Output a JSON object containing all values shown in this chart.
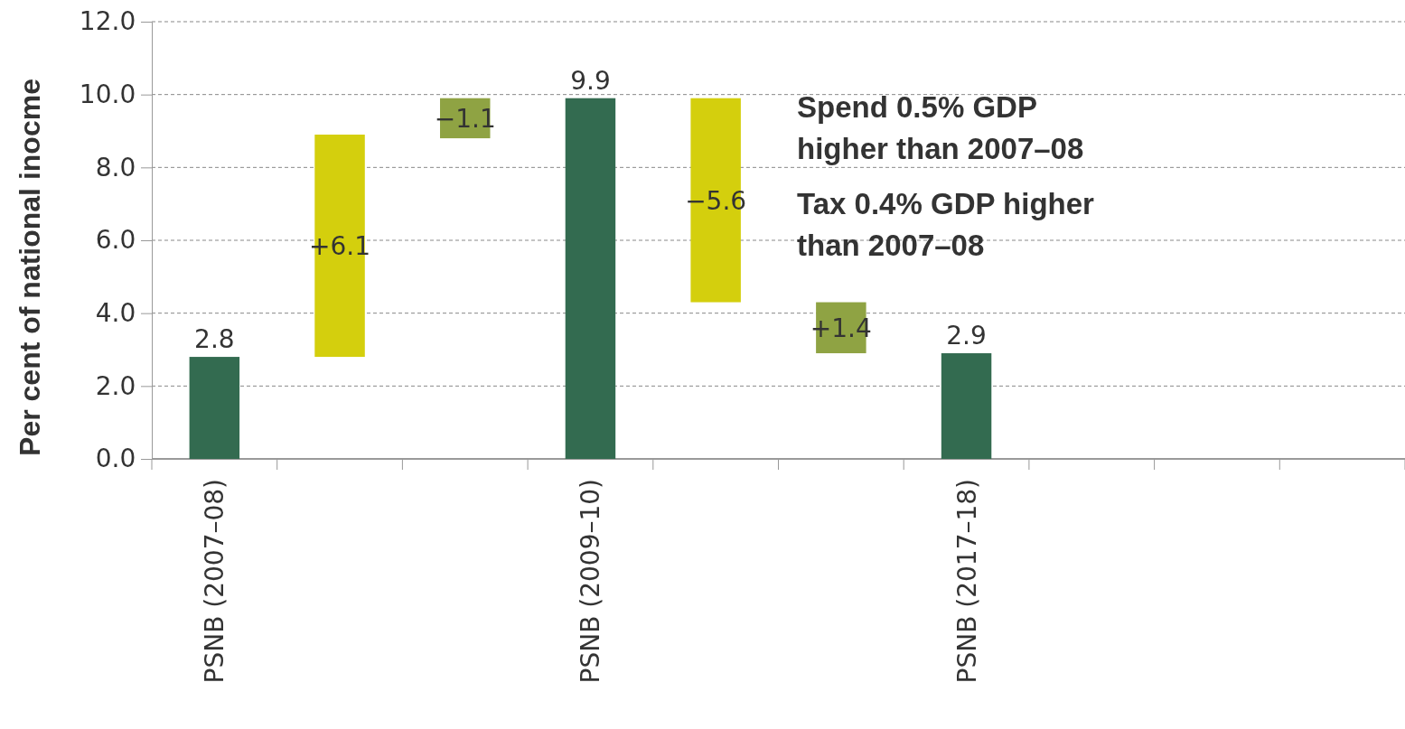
{
  "chart_data": {
    "type": "bar",
    "ylabel": "Per cent of national inocme",
    "categories": [
      "PSNB (2007–08)",
      null,
      null,
      "PSNB (2009–10)",
      null,
      null,
      "PSNB (2017–18)",
      null,
      null,
      null
    ],
    "values": [
      2.8,
      6.1,
      -1.1,
      9.9,
      -5.6,
      1.4,
      2.9,
      null,
      null,
      null
    ],
    "base": [
      0,
      2.8,
      9.9,
      0,
      9.9,
      2.9,
      0,
      null,
      null,
      null
    ],
    "colors": [
      "#336b50",
      "#d4cf0d",
      "#8fa343",
      "#336b50",
      "#d4cf0d",
      "#8fa343",
      "#336b50",
      null,
      null,
      null
    ],
    "value_labels": [
      "2.8",
      "+6.1",
      "−1.1",
      "9.9",
      "−5.6",
      "+1.4",
      "2.9",
      null,
      null,
      null
    ],
    "ylim": [
      0,
      12
    ],
    "yticks": [
      {
        "value": 0,
        "label": "0.0"
      },
      {
        "value": 2,
        "label": "2.0"
      },
      {
        "value": 4,
        "label": "4.0"
      },
      {
        "value": 6,
        "label": "6.0"
      },
      {
        "value": 8,
        "label": "8.0"
      },
      {
        "value": 10,
        "label": "10.0"
      },
      {
        "value": 12,
        "label": "12.0"
      }
    ],
    "grid": "y",
    "annotations": [
      "Spend 0.5% GDP higher than 2007–08",
      "Tax 0.4% GDP higher than 2007–08"
    ]
  }
}
